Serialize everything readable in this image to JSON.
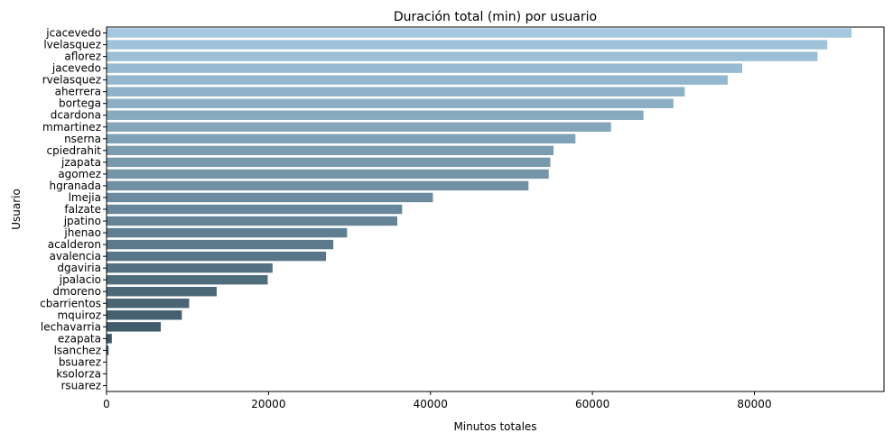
{
  "chart_data": {
    "type": "bar",
    "orientation": "horizontal",
    "title": "Duración total (min) por usuario",
    "xlabel": "Minutos totales",
    "ylabel": "Usuario",
    "xlim": [
      0,
      96000
    ],
    "xticks": [
      0,
      20000,
      40000,
      60000,
      80000
    ],
    "xtick_labels": [
      "0",
      "20000",
      "40000",
      "60000",
      "80000"
    ],
    "grid": false,
    "color_start": "#a3c8df",
    "color_end": "#2d4655",
    "categories": [
      "jcacevedo",
      "lvelasquez",
      "aflorez",
      "jacevedo",
      "rvelasquez",
      "aherrera",
      "bortega",
      "dcardona",
      "mmartinez",
      "nserna",
      "cpiedrahit",
      "jzapata",
      "agomez",
      "hgranada",
      "lmejia",
      "falzate",
      "jpatino",
      "jhenao",
      "acalderon",
      "avalencia",
      "dgaviria",
      "jpalacio",
      "dmoreno",
      "cbarrientos",
      "mquiroz",
      "lechavarria",
      "ezapata",
      "lsanchez",
      "bsuarez",
      "ksolorza",
      "rsuarez"
    ],
    "values": [
      92000,
      89000,
      87800,
      78500,
      76700,
      71400,
      70000,
      66300,
      62300,
      57900,
      55200,
      54800,
      54600,
      52100,
      40300,
      36500,
      35900,
      29700,
      28000,
      27100,
      20500,
      19900,
      13600,
      10200,
      9300,
      6700,
      650,
      250,
      60,
      40,
      20
    ]
  }
}
